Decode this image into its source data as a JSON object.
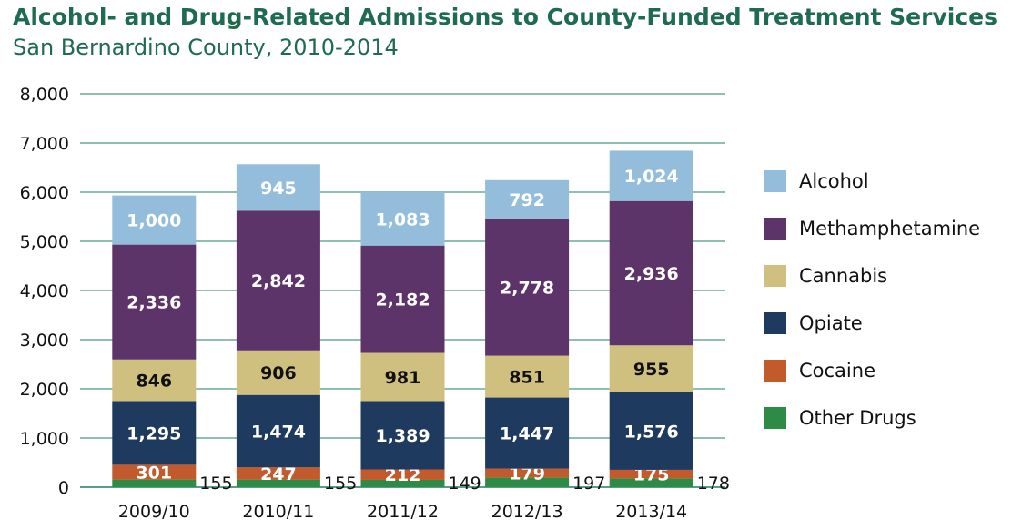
{
  "header": {
    "title": "Alcohol- and Drug-Related Admissions to County-Funded Treatment Services",
    "subtitle": "San Bernardino County, 2010-2014"
  },
  "chart_data": {
    "type": "bar",
    "stacked": true,
    "title": "Alcohol- and Drug-Related Admissions to County-Funded Treatment Services",
    "subtitle": "San Bernardino County, 2010-2014",
    "xlabel": "",
    "ylabel": "",
    "ylim": [
      0,
      8000
    ],
    "yticks": [
      0,
      1000,
      2000,
      3000,
      4000,
      5000,
      6000,
      7000,
      8000
    ],
    "ytick_labels": [
      "0",
      "1,000",
      "2,000",
      "3,000",
      "4,000",
      "5,000",
      "6,000",
      "7,000",
      "8,000"
    ],
    "grid": true,
    "legend_position": "right",
    "categories": [
      "2009/10",
      "2010/11",
      "2011/12",
      "2012/13",
      "2013/14"
    ],
    "series": [
      {
        "name": "Other Drugs",
        "color": "#2e8b45",
        "values": [
          155,
          155,
          149,
          197,
          178
        ],
        "labels": [
          "155",
          "155",
          "149",
          "197",
          "178"
        ]
      },
      {
        "name": "Cocaine",
        "color": "#c25a2c",
        "values": [
          301,
          247,
          212,
          179,
          175
        ],
        "labels": [
          "301",
          "247",
          "212",
          "179",
          "175"
        ]
      },
      {
        "name": "Opiate",
        "color": "#1f3a5f",
        "values": [
          1295,
          1474,
          1389,
          1447,
          1576
        ],
        "labels": [
          "1,295",
          "1,474",
          "1,389",
          "1,447",
          "1,576"
        ]
      },
      {
        "name": "Cannabis",
        "color": "#cfc07f",
        "values": [
          846,
          906,
          981,
          851,
          955
        ],
        "labels": [
          "846",
          "906",
          "981",
          "851",
          "955"
        ]
      },
      {
        "name": "Methamphetamine",
        "color": "#5c3469",
        "values": [
          2336,
          2842,
          2182,
          2778,
          2936
        ],
        "labels": [
          "2,336",
          "2,842",
          "2,182",
          "2,778",
          "2,936"
        ]
      },
      {
        "name": "Alcohol",
        "color": "#94bddc",
        "values": [
          1000,
          945,
          1083,
          792,
          1024
        ],
        "labels": [
          "1,000",
          "945",
          "1,083",
          "792",
          "1,024"
        ]
      }
    ],
    "legend_order": [
      "Alcohol",
      "Methamphetamine",
      "Cannabis",
      "Opiate",
      "Cocaine",
      "Other Drugs"
    ]
  }
}
